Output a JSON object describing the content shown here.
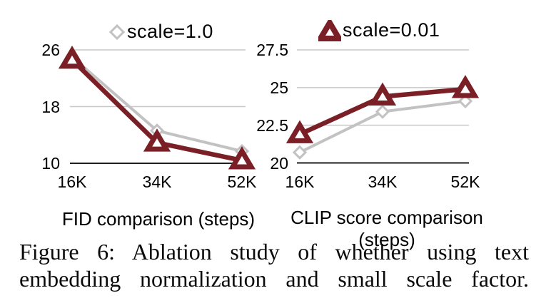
{
  "colors": {
    "scale_1_0": "#C2C2C2",
    "scale_0_01": "#7B1F26",
    "gridline": "#C8C8C8",
    "axis": "#1F1F1F"
  },
  "chart_data": [
    {
      "type": "line",
      "title": "",
      "categories": [
        "16K",
        "34K",
        "52K"
      ],
      "series": [
        {
          "name": "scale=1.0",
          "marker": "diamond",
          "color": "#C2C2C2",
          "values": [
            25.0,
            14.6,
            11.7
          ]
        },
        {
          "name": "scale=0.01",
          "marker": "triangle",
          "color": "#7B1F26",
          "values": [
            24.6,
            12.9,
            10.4
          ]
        }
      ],
      "xlabel": "FID comparison (steps)",
      "ylabel": "",
      "yticks": [
        26,
        18,
        10
      ],
      "ylim": [
        10,
        26
      ],
      "grid": true,
      "legend_position": "top"
    },
    {
      "type": "line",
      "title": "",
      "categories": [
        "16K",
        "34K",
        "52K"
      ],
      "series": [
        {
          "name": "scale=1.0",
          "marker": "diamond",
          "color": "#C2C2C2",
          "values": [
            20.7,
            23.4,
            24.1
          ]
        },
        {
          "name": "scale=0.01",
          "marker": "triangle",
          "color": "#7B1F26",
          "values": [
            21.9,
            24.4,
            24.9
          ]
        }
      ],
      "xlabel": "CLIP score comparison (steps)",
      "ylabel": "",
      "yticks": [
        27.5,
        25,
        22.5,
        20
      ],
      "ylim": [
        20,
        27.5
      ],
      "grid": true,
      "legend_position": "top"
    }
  ],
  "legend": {
    "left_label": "scale=1.0",
    "right_label": "scale=0.01"
  },
  "caption": {
    "line1": "Figure 6: Ablation study of whether using text",
    "line2": "embedding normalization and small scale factor."
  }
}
